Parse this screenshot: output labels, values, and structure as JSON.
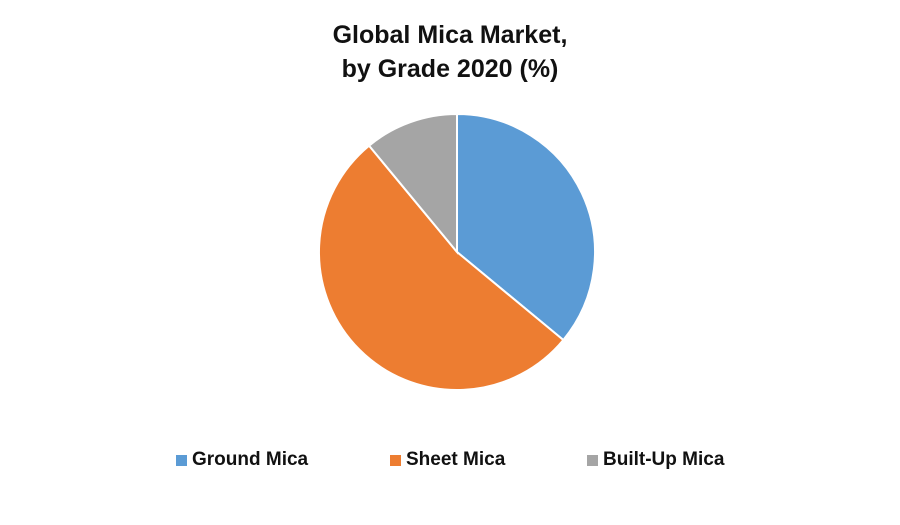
{
  "chart_data": {
    "type": "pie",
    "title": [
      "Global Mica Market,",
      "by Grade 2020 (%)"
    ],
    "categories": [
      "Ground Mica",
      "Sheet Mica",
      "Built-Up Mica"
    ],
    "values": [
      36,
      53,
      11
    ],
    "unit": "%",
    "colors": [
      "#5B9BD5",
      "#ED7D31",
      "#A5A5A5"
    ],
    "start_angle_deg": 0,
    "direction": "clockwise",
    "legend_position": "bottom",
    "data_labels": false
  }
}
